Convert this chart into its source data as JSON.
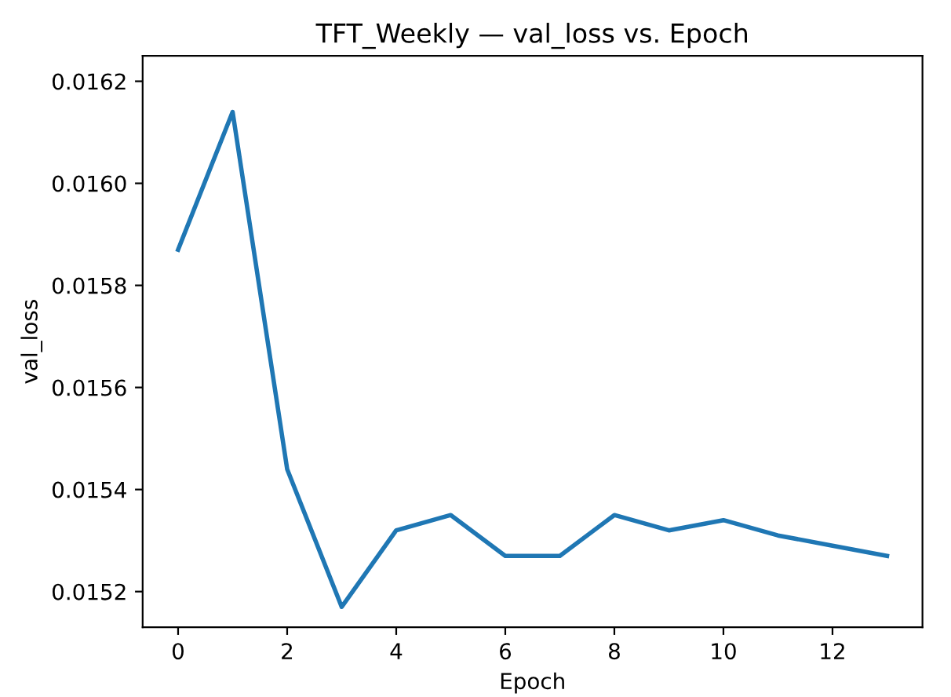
{
  "chart_data": {
    "type": "line",
    "title": "TFT_Weekly — val_loss vs. Epoch",
    "xlabel": "Epoch",
    "ylabel": "val_loss",
    "x": [
      0,
      1,
      2,
      3,
      4,
      5,
      6,
      7,
      8,
      9,
      10,
      11,
      12,
      13
    ],
    "series": [
      {
        "color": "#1f77b4",
        "values": [
          0.01587,
          0.01614,
          0.01544,
          0.01517,
          0.01532,
          0.01535,
          0.01527,
          0.01527,
          0.01535,
          0.01532,
          0.01534,
          0.01531,
          0.01529,
          0.01527
        ]
      }
    ],
    "xlim": [
      -0.65,
      13.65
    ],
    "xticks": [
      0,
      2,
      4,
      6,
      8,
      10,
      12
    ],
    "ylim": [
      0.01513,
      0.01625
    ],
    "yticks": [
      0.0152,
      0.0154,
      0.0156,
      0.0158,
      {
        "value": 0.016,
        "label": "0.0160"
      },
      0.0162
    ],
    "grid": false,
    "marker": "none",
    "line_style": "solid"
  }
}
